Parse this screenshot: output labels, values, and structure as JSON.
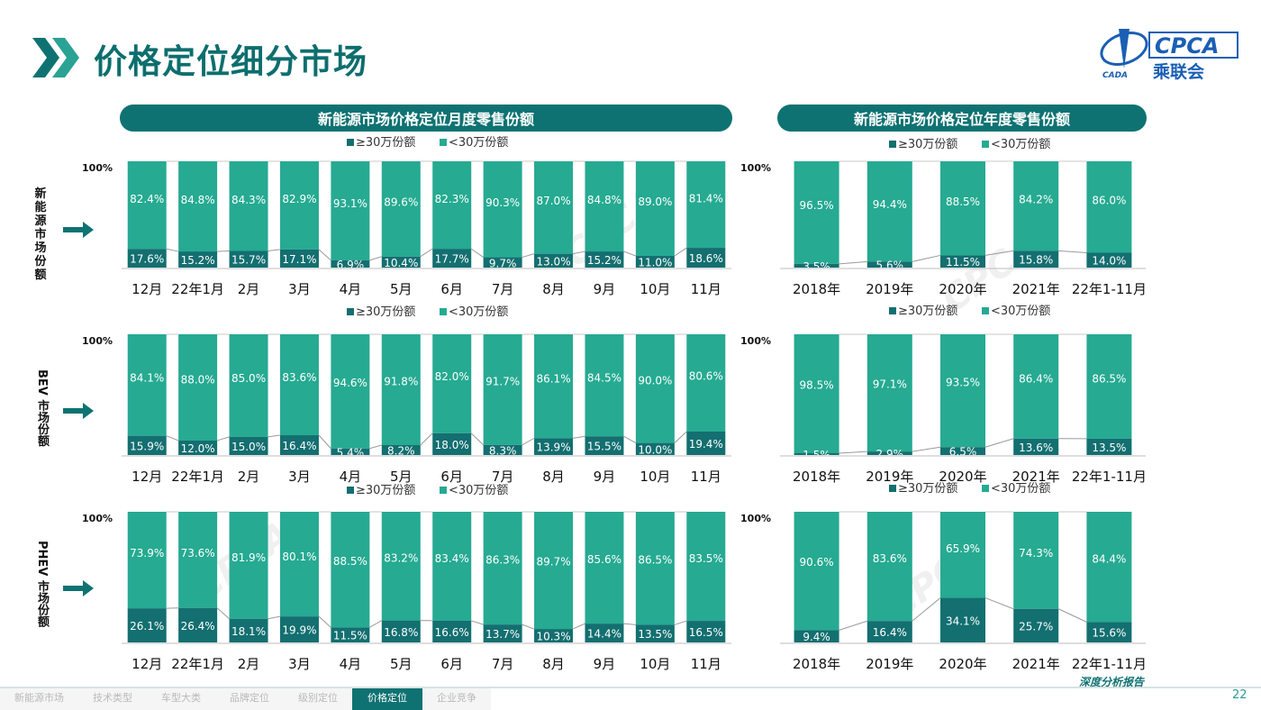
{
  "page_title": "价格定位细分市场",
  "logo_text": "CPCA",
  "logo_subtext": "乘联会",
  "logo_badge": "CADA",
  "banner_monthly": "新能源市场价格定位月度零售份额",
  "banner_yearly": "新能源市场价格定位年度零售份额",
  "row_labels": [
    "新能源市场份额",
    "BEV 市场份额",
    "PHEV 市场份额"
  ],
  "colors": {
    "high": "#136f70",
    "low": "#26aa92",
    "title_bg": "#0f7272"
  },
  "nav_items": [
    "新能源市场",
    "技术类型",
    "车型大类",
    "品牌定位",
    "级别定位",
    "价格定位",
    "企业竞争"
  ],
  "nav_active": "价格定位",
  "report_label": "深度分析报告",
  "page_number": "22",
  "chart_data": [
    {
      "type": "bar",
      "stacked": "percent",
      "legend": [
        "≥30万份额",
        "<30万份额"
      ],
      "ymax_label": "100%",
      "categories": [
        "12月",
        "22年1月",
        "2月",
        "3月",
        "4月",
        "5月",
        "6月",
        "7月",
        "8月",
        "9月",
        "10月",
        "11月"
      ],
      "series": [
        {
          "name": "≥30万份额",
          "values": [
            17.6,
            15.2,
            15.7,
            17.1,
            6.9,
            10.4,
            17.7,
            9.7,
            13.0,
            15.2,
            11.0,
            18.6
          ]
        },
        {
          "name": "<30万份额",
          "values": [
            82.4,
            84.8,
            84.3,
            82.9,
            93.1,
            89.6,
            82.3,
            90.3,
            87.0,
            84.8,
            89.0,
            81.4
          ]
        }
      ]
    },
    {
      "type": "bar",
      "stacked": "percent",
      "legend": [
        "≥30万份额",
        "<30万份额"
      ],
      "ymax_label": "100%",
      "categories": [
        "2018年",
        "2019年",
        "2020年",
        "2021年",
        "22年1-11月"
      ],
      "series": [
        {
          "name": "≥30万份额",
          "values": [
            3.5,
            5.6,
            11.5,
            15.8,
            14.0
          ]
        },
        {
          "name": "<30万份额",
          "values": [
            96.5,
            94.4,
            88.5,
            84.2,
            86.0
          ]
        }
      ]
    },
    {
      "type": "bar",
      "stacked": "percent",
      "legend": [
        "≥30万份额",
        "<30万份额"
      ],
      "ymax_label": "100%",
      "categories": [
        "12月",
        "22年1月",
        "2月",
        "3月",
        "4月",
        "5月",
        "6月",
        "7月",
        "8月",
        "9月",
        "10月",
        "11月"
      ],
      "series": [
        {
          "name": "≥30万份额",
          "values": [
            15.9,
            12.0,
            15.0,
            16.4,
            5.4,
            8.2,
            18.0,
            8.3,
            13.9,
            15.5,
            10.0,
            19.4
          ]
        },
        {
          "name": "<30万份额",
          "values": [
            84.1,
            88.0,
            85.0,
            83.6,
            94.6,
            91.8,
            82.0,
            91.7,
            86.1,
            84.5,
            90.0,
            80.6
          ]
        }
      ]
    },
    {
      "type": "bar",
      "stacked": "percent",
      "legend": [
        "≥30万份额",
        "<30万份额"
      ],
      "ymax_label": "100%",
      "categories": [
        "2018年",
        "2019年",
        "2020年",
        "2021年",
        "22年1-11月"
      ],
      "series": [
        {
          "name": "≥30万份额",
          "values": [
            1.5,
            2.9,
            6.5,
            13.6,
            13.5
          ]
        },
        {
          "name": "<30万份额",
          "values": [
            98.5,
            97.1,
            93.5,
            86.4,
            86.5
          ]
        }
      ]
    },
    {
      "type": "bar",
      "stacked": "percent",
      "legend": [
        "≥30万份额",
        "<30万份额"
      ],
      "ymax_label": "100%",
      "categories": [
        "12月",
        "22年1月",
        "2月",
        "3月",
        "4月",
        "5月",
        "6月",
        "7月",
        "8月",
        "9月",
        "10月",
        "11月"
      ],
      "series": [
        {
          "name": "≥30万份额",
          "values": [
            26.1,
            26.4,
            18.1,
            19.9,
            11.5,
            16.8,
            16.6,
            13.7,
            10.3,
            14.4,
            13.5,
            16.5
          ]
        },
        {
          "name": "<30万份额",
          "values": [
            73.9,
            73.6,
            81.9,
            80.1,
            88.5,
            83.2,
            83.4,
            86.3,
            89.7,
            85.6,
            86.5,
            83.5
          ]
        }
      ]
    },
    {
      "type": "bar",
      "stacked": "percent",
      "legend": [
        "≥30万份额",
        "<30万份额"
      ],
      "ymax_label": "100%",
      "categories": [
        "2018年",
        "2019年",
        "2020年",
        "2021年",
        "22年1-11月"
      ],
      "series": [
        {
          "name": "≥30万份额",
          "values": [
            9.4,
            16.4,
            34.1,
            25.7,
            15.6
          ]
        },
        {
          "name": "<30万份额",
          "values": [
            90.6,
            83.6,
            65.9,
            74.3,
            84.4
          ]
        }
      ]
    }
  ]
}
